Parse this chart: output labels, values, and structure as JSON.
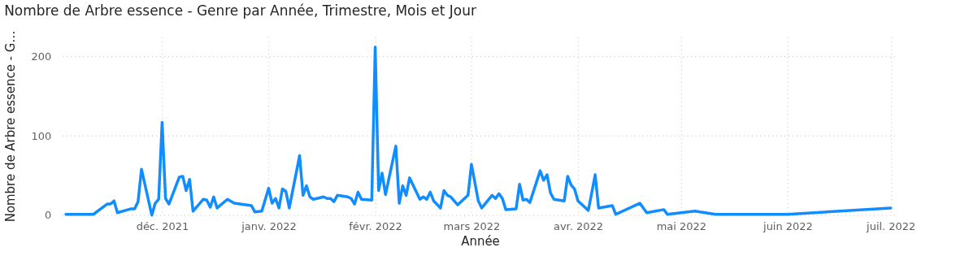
{
  "chart_data": {
    "type": "line",
    "title": "Nombre de Arbre essence - Genre par Année, Trimestre, Mois et Jour",
    "xlabel": "Année",
    "ylabel": "Nombre de Arbre essence - G…",
    "x": [
      "2021-11-03",
      "2021-11-11",
      "2021-11-15",
      "2021-11-16",
      "2021-11-17",
      "2021-11-18",
      "2021-11-22",
      "2021-11-23",
      "2021-11-24",
      "2021-11-25",
      "2021-11-28",
      "2021-11-29",
      "2021-11-30",
      "2021-12-01",
      "2021-12-02",
      "2021-12-03",
      "2021-12-06",
      "2021-12-07",
      "2021-12-08",
      "2021-12-09",
      "2021-12-10",
      "2021-12-13",
      "2021-12-14",
      "2021-12-15",
      "2021-12-16",
      "2021-12-17",
      "2021-12-20",
      "2021-12-22",
      "2021-12-27",
      "2021-12-28",
      "2021-12-30",
      "2022-01-01",
      "2022-01-02",
      "2022-01-03",
      "2022-01-04",
      "2022-01-05",
      "2022-01-06",
      "2022-01-07",
      "2022-01-10",
      "2022-01-11",
      "2022-01-12",
      "2022-01-13",
      "2022-01-14",
      "2022-01-17",
      "2022-01-18",
      "2022-01-19",
      "2022-01-20",
      "2022-01-21",
      "2022-01-24",
      "2022-01-25",
      "2022-01-26",
      "2022-01-27",
      "2022-01-28",
      "2022-01-31",
      "2022-02-01",
      "2022-02-02",
      "2022-02-03",
      "2022-02-04",
      "2022-02-07",
      "2022-02-08",
      "2022-02-09",
      "2022-02-10",
      "2022-02-11",
      "2022-02-14",
      "2022-02-15",
      "2022-02-16",
      "2022-02-17",
      "2022-02-18",
      "2022-02-20",
      "2022-02-21",
      "2022-02-22",
      "2022-02-23",
      "2022-02-25",
      "2022-02-28",
      "2022-03-01",
      "2022-03-03",
      "2022-03-04",
      "2022-03-07",
      "2022-03-08",
      "2022-03-09",
      "2022-03-10",
      "2022-03-11",
      "2022-03-14",
      "2022-03-15",
      "2022-03-16",
      "2022-03-17",
      "2022-03-18",
      "2022-03-21",
      "2022-03-22",
      "2022-03-23",
      "2022-03-24",
      "2022-03-25",
      "2022-03-28",
      "2022-03-29",
      "2022-03-30",
      "2022-03-31",
      "2022-04-01",
      "2022-04-04",
      "2022-04-05",
      "2022-04-06",
      "2022-04-07",
      "2022-04-11",
      "2022-04-12",
      "2022-04-19",
      "2022-04-21",
      "2022-04-26",
      "2022-04-27",
      "2022-05-05",
      "2022-05-11",
      "2022-06-01",
      "2022-07-01"
    ],
    "series": [
      {
        "color": "#118dff",
        "values": [
          1,
          1,
          14,
          14,
          18,
          3,
          8,
          8,
          17,
          58,
          0,
          15,
          20,
          117,
          21,
          14,
          48,
          49,
          31,
          45,
          5,
          20,
          19,
          10,
          23,
          9,
          20,
          15,
          12,
          4,
          5,
          34,
          15,
          21,
          9,
          33,
          30,
          9,
          75,
          25,
          37,
          23,
          20,
          23,
          21,
          21,
          17,
          25,
          23,
          21,
          14,
          29,
          20,
          19,
          212,
          31,
          53,
          26,
          87,
          15,
          37,
          25,
          47,
          20,
          23,
          20,
          29,
          18,
          9,
          31,
          25,
          23,
          13,
          25,
          64,
          18,
          9,
          25,
          21,
          27,
          21,
          7,
          8,
          39,
          19,
          20,
          16,
          56,
          44,
          51,
          28,
          20,
          18,
          49,
          38,
          33,
          18,
          6,
          28,
          51,
          9,
          12,
          1,
          15,
          3,
          7,
          1,
          5,
          1,
          1,
          9
        ]
      }
    ],
    "xlim": [
      "2021-11-02",
      "2022-07-03"
    ],
    "xticks": [
      {
        "value": "2021-12-01",
        "label": "déc. 2021"
      },
      {
        "value": "2022-01-01",
        "label": "janv. 2022"
      },
      {
        "value": "2022-02-01",
        "label": "févr. 2022"
      },
      {
        "value": "2022-03-01",
        "label": "mars 2022"
      },
      {
        "value": "2022-04-01",
        "label": "avr. 2022"
      },
      {
        "value": "2022-05-01",
        "label": "mai 2022"
      },
      {
        "value": "2022-06-01",
        "label": "juin 2022"
      },
      {
        "value": "2022-07-01",
        "label": "juil. 2022"
      }
    ],
    "ylim": [
      0,
      225
    ],
    "yticks": [
      0,
      100,
      200
    ],
    "grid": true,
    "line_style": "solid",
    "marker": "none",
    "legend": false
  }
}
